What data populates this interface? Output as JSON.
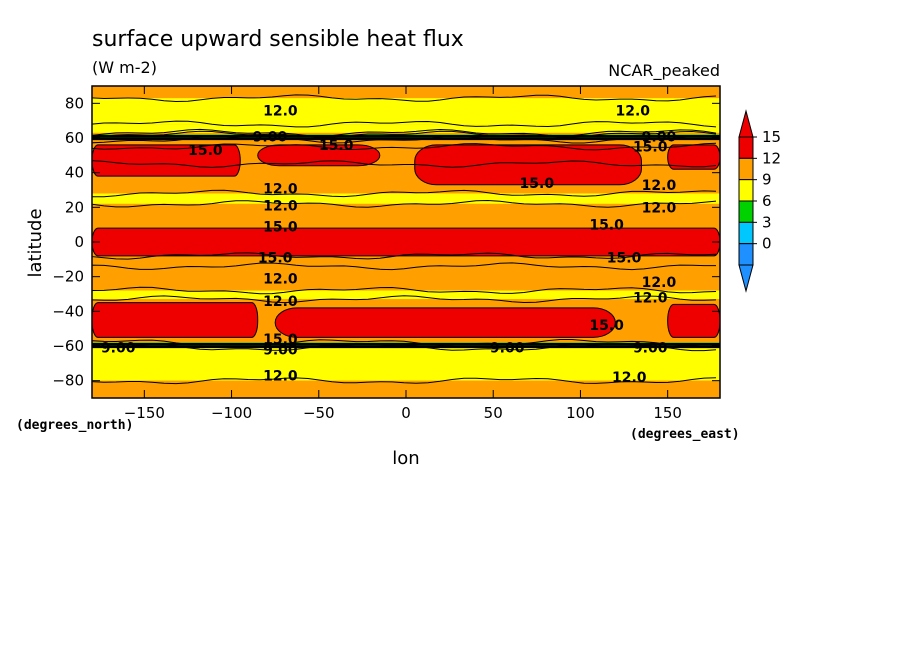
{
  "chart_data": {
    "type": "heatmap",
    "title": "surface upward sensible heat flux",
    "units": "(W m-2)",
    "model": "NCAR_peaked",
    "xlabel": "lon",
    "ylabel": "latitude",
    "x_units": "(degrees_east)",
    "y_units": "(degrees_north)",
    "xlim": [
      -180,
      180
    ],
    "ylim": [
      -90,
      90
    ],
    "x_ticks": [
      -150,
      -100,
      -50,
      0,
      50,
      100,
      150
    ],
    "y_ticks": [
      80,
      60,
      40,
      20,
      0,
      -20,
      -40,
      -60,
      -80
    ],
    "colorbar": {
      "levels": [
        0,
        3,
        6,
        9,
        12,
        15
      ],
      "colors": [
        "#1e90ff",
        "#00c8ff",
        "#00d200",
        "#ffff00",
        "#ffa000",
        "#ee0000"
      ],
      "under_color": "#1e90ff",
      "over_color": "#ee0000"
    },
    "bands": [
      {
        "lat": [
          83,
          90
        ],
        "value": 13
      },
      {
        "lat": [
          68,
          83
        ],
        "value": 10.5
      },
      {
        "lat": [
          63,
          68
        ],
        "value": 10.5
      },
      {
        "lat": [
          59,
          62
        ],
        "value": 7
      },
      {
        "lat": [
          55,
          59
        ],
        "value": 13
      },
      {
        "lat": [
          28,
          45
        ],
        "value": 13
      },
      {
        "lat": [
          22,
          28
        ],
        "value": 10.5
      },
      {
        "lat": [
          -8,
          22
        ],
        "value": 13
      },
      {
        "lat": [
          -28,
          -14
        ],
        "value": 13
      },
      {
        "lat": [
          -33,
          -28
        ],
        "value": 10.5
      },
      {
        "lat": [
          -58,
          -33
        ],
        "value": 13
      },
      {
        "lat": [
          -61,
          -58
        ],
        "value": 7
      },
      {
        "lat": [
          -80,
          -61
        ],
        "value": 10.5
      },
      {
        "lat": [
          -90,
          -80
        ],
        "value": 13
      }
    ],
    "max_regions": [
      {
        "lon": [
          -180,
          -95
        ],
        "lat": [
          38,
          56
        ],
        "value": 16
      },
      {
        "lon": [
          -85,
          -15
        ],
        "lat": [
          44,
          56
        ],
        "value": 16
      },
      {
        "lon": [
          5,
          135
        ],
        "lat": [
          33,
          56
        ],
        "value": 16
      },
      {
        "lon": [
          150,
          180
        ],
        "lat": [
          42,
          56
        ],
        "value": 16
      },
      {
        "lon": [
          -180,
          180
        ],
        "lat": [
          -8,
          8
        ],
        "value": 16
      },
      {
        "lon": [
          -180,
          -85
        ],
        "lat": [
          -55,
          -35
        ],
        "value": 16
      },
      {
        "lon": [
          -75,
          120
        ],
        "lat": [
          -55,
          -38
        ],
        "value": 16
      },
      {
        "lon": [
          150,
          180
        ],
        "lat": [
          -55,
          -36
        ],
        "value": 16
      }
    ],
    "contour_labels": [
      {
        "text": "12.0",
        "lon": -72,
        "lat": 76
      },
      {
        "text": "12.0",
        "lon": 130,
        "lat": 76
      },
      {
        "text": "9.00",
        "lon": -78,
        "lat": 61
      },
      {
        "text": "9.00",
        "lon": 145,
        "lat": 61
      },
      {
        "text": "15.0",
        "lon": -115,
        "lat": 53
      },
      {
        "text": "15.0",
        "lon": -40,
        "lat": 56
      },
      {
        "text": "15.0",
        "lon": 140,
        "lat": 55
      },
      {
        "text": "15.0",
        "lon": 75,
        "lat": 34
      },
      {
        "text": "12.0",
        "lon": 145,
        "lat": 33
      },
      {
        "text": "12.0",
        "lon": -72,
        "lat": 31
      },
      {
        "text": "12.0",
        "lon": -72,
        "lat": 21
      },
      {
        "text": "12.0",
        "lon": 145,
        "lat": 20
      },
      {
        "text": "15.0",
        "lon": -72,
        "lat": 9
      },
      {
        "text": "15.0",
        "lon": 115,
        "lat": 10
      },
      {
        "text": "15.0",
        "lon": -75,
        "lat": -9
      },
      {
        "text": "15.0",
        "lon": 125,
        "lat": -9
      },
      {
        "text": "12.0",
        "lon": -72,
        "lat": -21
      },
      {
        "text": "12.0",
        "lon": 145,
        "lat": -23
      },
      {
        "text": "12.0",
        "lon": 140,
        "lat": -32
      },
      {
        "text": "12.0",
        "lon": -72,
        "lat": -34
      },
      {
        "text": "15.0",
        "lon": 115,
        "lat": -48
      },
      {
        "text": "15.0",
        "lon": -72,
        "lat": -56
      },
      {
        "text": "9.00",
        "lon": -165,
        "lat": -61
      },
      {
        "text": "9.00",
        "lon": -72,
        "lat": -62
      },
      {
        "text": "9.00",
        "lon": 58,
        "lat": -61
      },
      {
        "text": "9.00",
        "lon": 140,
        "lat": -61
      },
      {
        "text": "12.0",
        "lon": -72,
        "lat": -77
      },
      {
        "text": "12.0",
        "lon": 128,
        "lat": -78
      }
    ]
  }
}
